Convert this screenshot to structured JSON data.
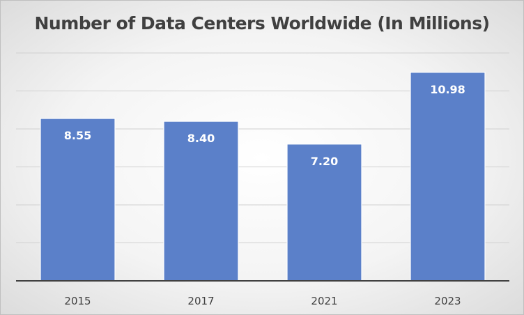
{
  "chart_data": {
    "type": "bar",
    "title": "Number of Data Centers Worldwide (In Millions)",
    "categories": [
      "2015",
      "2017",
      "2021",
      "2023"
    ],
    "values": [
      8.55,
      8.4,
      7.2,
      10.98
    ],
    "data_labels": [
      "8.55",
      "8.40",
      "7.20",
      "10.98"
    ],
    "xlabel": "",
    "ylabel": "",
    "ylim": [
      0,
      12
    ],
    "grid": true,
    "bar_color": "#5b80c9",
    "legend": "none"
  }
}
